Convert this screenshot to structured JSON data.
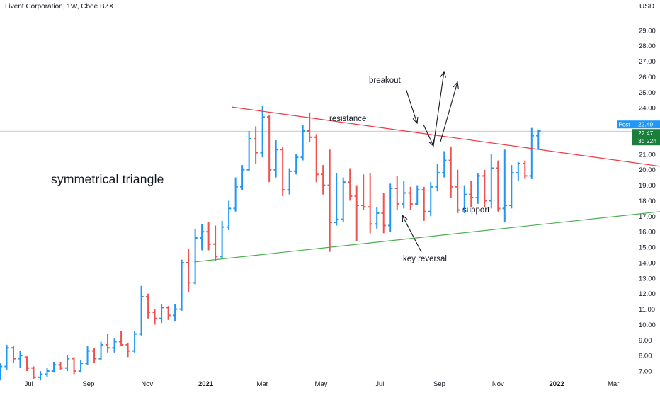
{
  "header": {
    "symbol_name": "Livent Corporation, 1W, Cboe BZX",
    "currency": "USD"
  },
  "annotations": {
    "pattern": "symmetrical triangle",
    "resistance": "resistance",
    "support": "support",
    "breakout": "breakout",
    "key_reversal": "key reversal"
  },
  "price_tags": {
    "post_label": "Post",
    "post_value": "22.49",
    "last_value": "22.47",
    "countdown": "3d 22h"
  },
  "colors": {
    "up": "#2196f3",
    "down": "#ef5350",
    "resistance": "#f23645",
    "support": "#4caf50",
    "last_tag": "#1b7f3c",
    "post_tag": "#2196f3"
  },
  "chart_data": {
    "type": "ohlc",
    "title": "Livent Corporation, 1W, Cboe BZX",
    "y_axis": {
      "range": [
        6.5,
        30.5
      ],
      "ticks": [
        7,
        8,
        9,
        10,
        11,
        12,
        13,
        14,
        15,
        16,
        17,
        18,
        19,
        20,
        21,
        22,
        23,
        24,
        25,
        26,
        27,
        28,
        29
      ],
      "tick_labels": [
        "7.00",
        "8.00",
        "9.00",
        "10.00",
        "11.00",
        "12.00",
        "13.00",
        "14.00",
        "15.00",
        "16.00",
        "17.00",
        "18.00",
        "19.00",
        "20.00",
        "21.00",
        "22.00",
        "23.00",
        "24.00",
        "25.00",
        "26.00",
        "27.00",
        "28.00",
        "29.00"
      ]
    },
    "x_axis": {
      "range": [
        "2020-06-01",
        "2022-03-20"
      ],
      "ticks": [
        {
          "date": "2020-07-01",
          "label": "Jul"
        },
        {
          "date": "2020-09-01",
          "label": "Sep"
        },
        {
          "date": "2020-11-01",
          "label": "Nov"
        },
        {
          "date": "2021-01-01",
          "label": "2021"
        },
        {
          "date": "2021-03-01",
          "label": "Mar"
        },
        {
          "date": "2021-05-01",
          "label": "May"
        },
        {
          "date": "2021-07-01",
          "label": "Jul"
        },
        {
          "date": "2021-09-01",
          "label": "Sep"
        },
        {
          "date": "2021-11-01",
          "label": "Nov"
        },
        {
          "date": "2022-01-01",
          "label": "2022"
        },
        {
          "date": "2022-03-01",
          "label": "Mar"
        }
      ]
    },
    "bars": [
      {
        "date": "2020-06-01",
        "o": 6.9,
        "h": 7.5,
        "l": 6.4,
        "c": 7.3
      },
      {
        "date": "2020-06-08",
        "o": 7.3,
        "h": 8.7,
        "l": 7.1,
        "c": 8.5
      },
      {
        "date": "2020-06-15",
        "o": 8.5,
        "h": 8.6,
        "l": 7.5,
        "c": 7.8
      },
      {
        "date": "2020-06-22",
        "o": 7.8,
        "h": 8.3,
        "l": 7.2,
        "c": 8.0
      },
      {
        "date": "2020-06-29",
        "o": 7.9,
        "h": 7.95,
        "l": 7.0,
        "c": 7.2
      },
      {
        "date": "2020-07-06",
        "o": 7.2,
        "h": 7.3,
        "l": 6.5,
        "c": 6.6
      },
      {
        "date": "2020-07-13",
        "o": 6.6,
        "h": 7.0,
        "l": 6.4,
        "c": 6.8
      },
      {
        "date": "2020-07-20",
        "o": 6.8,
        "h": 7.2,
        "l": 6.6,
        "c": 7.0
      },
      {
        "date": "2020-07-27",
        "o": 7.0,
        "h": 7.6,
        "l": 6.9,
        "c": 7.4
      },
      {
        "date": "2020-08-03",
        "o": 7.4,
        "h": 7.6,
        "l": 7.1,
        "c": 7.2
      },
      {
        "date": "2020-08-10",
        "o": 7.2,
        "h": 8.0,
        "l": 7.0,
        "c": 7.8
      },
      {
        "date": "2020-08-17",
        "o": 7.8,
        "h": 7.9,
        "l": 6.8,
        "c": 7.0
      },
      {
        "date": "2020-08-24",
        "o": 7.0,
        "h": 7.7,
        "l": 6.9,
        "c": 7.5
      },
      {
        "date": "2020-08-31",
        "o": 7.5,
        "h": 8.6,
        "l": 7.4,
        "c": 8.3
      },
      {
        "date": "2020-09-07",
        "o": 8.3,
        "h": 8.5,
        "l": 7.5,
        "c": 7.8
      },
      {
        "date": "2020-09-14",
        "o": 7.8,
        "h": 8.9,
        "l": 7.7,
        "c": 8.7
      },
      {
        "date": "2020-09-21",
        "o": 8.7,
        "h": 9.4,
        "l": 8.2,
        "c": 8.5
      },
      {
        "date": "2020-09-28",
        "o": 8.5,
        "h": 9.1,
        "l": 8.2,
        "c": 8.9
      },
      {
        "date": "2020-10-05",
        "o": 8.9,
        "h": 9.6,
        "l": 8.6,
        "c": 8.7
      },
      {
        "date": "2020-10-12",
        "o": 8.7,
        "h": 8.8,
        "l": 7.9,
        "c": 8.3
      },
      {
        "date": "2020-10-19",
        "o": 8.3,
        "h": 9.6,
        "l": 8.2,
        "c": 9.4
      },
      {
        "date": "2020-10-26",
        "o": 9.4,
        "h": 12.5,
        "l": 9.3,
        "c": 11.8
      },
      {
        "date": "2020-11-02",
        "o": 11.8,
        "h": 12.0,
        "l": 10.4,
        "c": 10.8
      },
      {
        "date": "2020-11-09",
        "o": 10.8,
        "h": 11.0,
        "l": 10.0,
        "c": 10.4
      },
      {
        "date": "2020-11-16",
        "o": 10.4,
        "h": 11.3,
        "l": 10.1,
        "c": 11.1
      },
      {
        "date": "2020-11-23",
        "o": 11.1,
        "h": 11.2,
        "l": 10.3,
        "c": 10.6
      },
      {
        "date": "2020-11-30",
        "o": 10.6,
        "h": 11.3,
        "l": 10.2,
        "c": 11.0
      },
      {
        "date": "2020-12-07",
        "o": 11.0,
        "h": 14.2,
        "l": 10.9,
        "c": 14.0
      },
      {
        "date": "2020-12-14",
        "o": 14.0,
        "h": 14.9,
        "l": 12.1,
        "c": 12.7
      },
      {
        "date": "2020-12-21",
        "o": 12.7,
        "h": 16.2,
        "l": 12.6,
        "c": 15.6
      },
      {
        "date": "2020-12-28",
        "o": 15.6,
        "h": 16.5,
        "l": 14.8,
        "c": 16.0
      },
      {
        "date": "2021-01-04",
        "o": 16.0,
        "h": 16.6,
        "l": 14.8,
        "c": 15.2
      },
      {
        "date": "2021-01-11",
        "o": 15.2,
        "h": 16.4,
        "l": 14.1,
        "c": 14.4
      },
      {
        "date": "2021-01-18",
        "o": 14.4,
        "h": 16.7,
        "l": 14.3,
        "c": 16.3
      },
      {
        "date": "2021-01-25",
        "o": 16.3,
        "h": 18.0,
        "l": 16.1,
        "c": 17.5
      },
      {
        "date": "2021-02-01",
        "o": 17.5,
        "h": 19.5,
        "l": 17.3,
        "c": 18.9
      },
      {
        "date": "2021-02-08",
        "o": 18.9,
        "h": 20.3,
        "l": 18.7,
        "c": 20.0
      },
      {
        "date": "2021-02-15",
        "o": 20.0,
        "h": 22.5,
        "l": 19.9,
        "c": 22.0
      },
      {
        "date": "2021-02-22",
        "o": 22.0,
        "h": 22.8,
        "l": 20.4,
        "c": 21.1
      },
      {
        "date": "2021-03-01",
        "o": 21.1,
        "h": 24.1,
        "l": 20.8,
        "c": 23.4
      },
      {
        "date": "2021-03-08",
        "o": 23.4,
        "h": 23.5,
        "l": 19.2,
        "c": 20.0
      },
      {
        "date": "2021-03-15",
        "o": 20.0,
        "h": 21.9,
        "l": 19.5,
        "c": 21.3
      },
      {
        "date": "2021-03-22",
        "o": 21.3,
        "h": 21.5,
        "l": 18.3,
        "c": 18.7
      },
      {
        "date": "2021-03-29",
        "o": 18.7,
        "h": 20.1,
        "l": 18.4,
        "c": 19.9
      },
      {
        "date": "2021-04-05",
        "o": 19.9,
        "h": 21.0,
        "l": 19.7,
        "c": 20.8
      },
      {
        "date": "2021-04-12",
        "o": 20.8,
        "h": 22.9,
        "l": 20.6,
        "c": 22.5
      },
      {
        "date": "2021-04-19",
        "o": 22.5,
        "h": 23.7,
        "l": 21.8,
        "c": 22.1
      },
      {
        "date": "2021-04-26",
        "o": 22.1,
        "h": 22.3,
        "l": 19.2,
        "c": 19.7
      },
      {
        "date": "2021-05-03",
        "o": 19.7,
        "h": 20.3,
        "l": 18.4,
        "c": 19.0
      },
      {
        "date": "2021-05-10",
        "o": 19.0,
        "h": 21.3,
        "l": 14.7,
        "c": 16.6
      },
      {
        "date": "2021-05-17",
        "o": 16.6,
        "h": 19.8,
        "l": 16.4,
        "c": 16.8
      },
      {
        "date": "2021-05-24",
        "o": 16.8,
        "h": 19.5,
        "l": 16.6,
        "c": 19.2
      },
      {
        "date": "2021-05-31",
        "o": 19.2,
        "h": 20.1,
        "l": 18.0,
        "c": 18.3
      },
      {
        "date": "2021-06-07",
        "o": 18.3,
        "h": 19.0,
        "l": 15.4,
        "c": 17.7
      },
      {
        "date": "2021-06-14",
        "o": 17.7,
        "h": 19.7,
        "l": 17.4,
        "c": 17.6
      },
      {
        "date": "2021-06-21",
        "o": 17.6,
        "h": 19.8,
        "l": 15.9,
        "c": 16.5
      },
      {
        "date": "2021-06-28",
        "o": 16.5,
        "h": 17.6,
        "l": 16.2,
        "c": 17.2
      },
      {
        "date": "2021-07-05",
        "o": 17.2,
        "h": 18.5,
        "l": 15.9,
        "c": 16.4
      },
      {
        "date": "2021-07-12",
        "o": 16.4,
        "h": 19.1,
        "l": 16.0,
        "c": 18.8
      },
      {
        "date": "2021-07-19",
        "o": 18.8,
        "h": 19.6,
        "l": 17.4,
        "c": 17.8
      },
      {
        "date": "2021-07-26",
        "o": 17.8,
        "h": 19.3,
        "l": 17.5,
        "c": 18.5
      },
      {
        "date": "2021-08-02",
        "o": 18.5,
        "h": 18.9,
        "l": 17.4,
        "c": 17.8
      },
      {
        "date": "2021-08-09",
        "o": 17.8,
        "h": 19.0,
        "l": 17.7,
        "c": 18.7
      },
      {
        "date": "2021-08-16",
        "o": 18.7,
        "h": 18.9,
        "l": 16.7,
        "c": 17.3
      },
      {
        "date": "2021-08-23",
        "o": 17.3,
        "h": 19.2,
        "l": 17.0,
        "c": 18.9
      },
      {
        "date": "2021-08-30",
        "o": 18.9,
        "h": 20.4,
        "l": 18.6,
        "c": 19.8
      },
      {
        "date": "2021-09-06",
        "o": 19.8,
        "h": 21.2,
        "l": 19.5,
        "c": 20.6
      },
      {
        "date": "2021-09-13",
        "o": 20.6,
        "h": 21.5,
        "l": 18.2,
        "c": 18.9
      },
      {
        "date": "2021-09-20",
        "o": 18.9,
        "h": 20.0,
        "l": 17.2,
        "c": 17.4
      },
      {
        "date": "2021-09-27",
        "o": 17.4,
        "h": 19.0,
        "l": 17.2,
        "c": 18.4
      },
      {
        "date": "2021-10-04",
        "o": 18.4,
        "h": 19.3,
        "l": 17.6,
        "c": 18.2
      },
      {
        "date": "2021-10-11",
        "o": 18.2,
        "h": 19.8,
        "l": 17.8,
        "c": 19.6
      },
      {
        "date": "2021-10-18",
        "o": 19.6,
        "h": 20.0,
        "l": 17.6,
        "c": 18.0
      },
      {
        "date": "2021-10-25",
        "o": 18.0,
        "h": 21.0,
        "l": 17.5,
        "c": 20.1
      },
      {
        "date": "2021-11-01",
        "o": 20.1,
        "h": 20.6,
        "l": 17.3,
        "c": 17.5
      },
      {
        "date": "2021-11-08",
        "o": 17.5,
        "h": 21.3,
        "l": 16.6,
        "c": 17.7
      },
      {
        "date": "2021-11-15",
        "o": 17.7,
        "h": 20.3,
        "l": 17.5,
        "c": 19.8
      },
      {
        "date": "2021-11-22",
        "o": 19.8,
        "h": 20.5,
        "l": 19.3,
        "c": 20.4
      },
      {
        "date": "2021-11-29",
        "o": 20.4,
        "h": 20.6,
        "l": 19.4,
        "c": 19.6
      },
      {
        "date": "2021-12-06",
        "o": 19.6,
        "h": 22.7,
        "l": 19.4,
        "c": 22.2
      },
      {
        "date": "2021-12-13",
        "o": 22.2,
        "h": 22.6,
        "l": 21.3,
        "c": 22.5
      }
    ],
    "resistance_line": {
      "from": {
        "date": "2021-01-28",
        "price": 24.05
      },
      "to": {
        "date": "2022-06-30",
        "price": 19.6
      }
    },
    "support_line": {
      "from": {
        "date": "2020-12-20",
        "price": 14.05
      },
      "to": {
        "date": "2022-07-10",
        "price": 17.85
      }
    },
    "current_price": 22.49
  }
}
